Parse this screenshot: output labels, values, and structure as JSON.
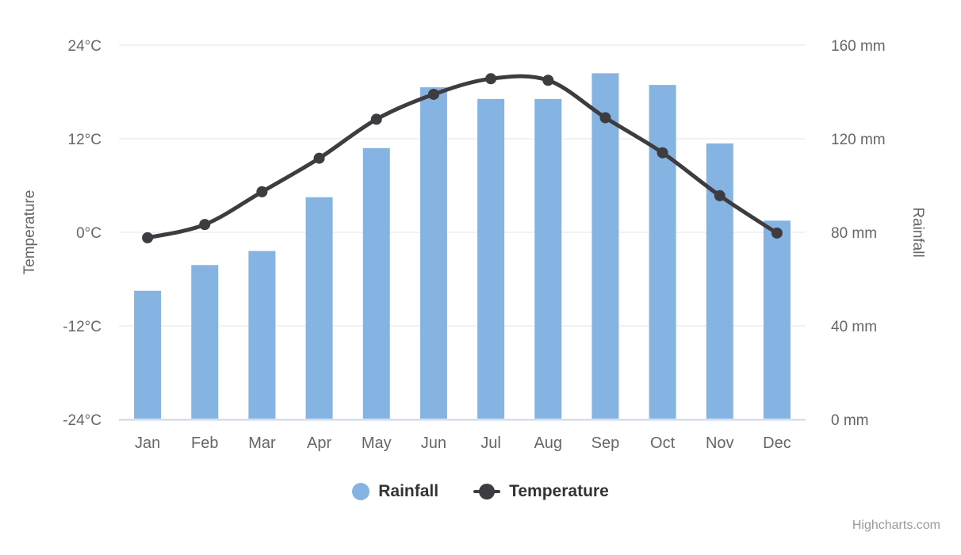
{
  "chart_data": {
    "type": "combo (column + spline, dual y-axes)",
    "title": "",
    "categories": [
      "Jan",
      "Feb",
      "Mar",
      "Apr",
      "May",
      "Jun",
      "Jul",
      "Aug",
      "Sep",
      "Oct",
      "Nov",
      "Dec"
    ],
    "series": [
      {
        "name": "Rainfall",
        "type": "bar",
        "axis": "right",
        "unit": "mm",
        "values": [
          55,
          66,
          72,
          95,
          116,
          142,
          137,
          137,
          148,
          143,
          118,
          85
        ]
      },
      {
        "name": "Temperature",
        "type": "line",
        "axis": "left",
        "unit": "°C",
        "values": [
          -0.7,
          1.0,
          5.2,
          9.5,
          14.5,
          17.7,
          19.7,
          19.5,
          14.7,
          10.2,
          4.7,
          -0.1
        ]
      }
    ],
    "y_axis_left": {
      "title": "Temperature",
      "min": -24,
      "max": 24,
      "tick_labels": [
        "24°C",
        "12°C",
        "0°C",
        "-12°C",
        "-24°C"
      ]
    },
    "y_axis_right": {
      "title": "Rainfall",
      "min": 0,
      "max": 160,
      "tick_labels": [
        "160 mm",
        "120 mm",
        "80 mm",
        "40 mm",
        "0 mm"
      ]
    },
    "grid": "horizontal gridlines only",
    "legend_position": "bottom-center"
  },
  "colors": {
    "bar": "#85b4e2",
    "line": "#3e3c41",
    "marker": "#3e3c41",
    "gridline": "#e6e6e6",
    "axis_line": "#ccd6eb",
    "tick_text": "#666666",
    "legend_text": "#333333",
    "credit_text": "#999999",
    "background": "#ffffff"
  },
  "credit": "Highcharts.com"
}
